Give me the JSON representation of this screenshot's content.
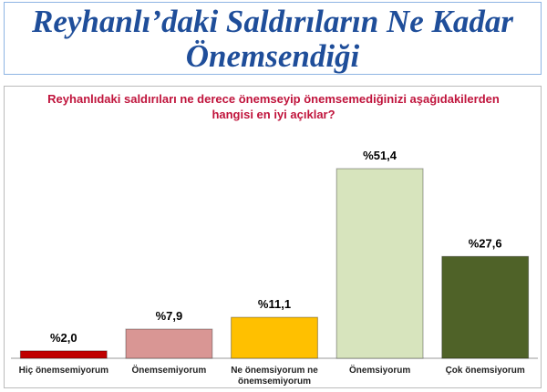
{
  "chart_data": {
    "type": "bar",
    "title": "Reyhanlı’daki Saldırıların Ne Kadar Önemsendiği",
    "subtitle": "Reyhanlıdaki saldırıları ne derece önemseyip önemsemediğinizi aşağıdakilerden hangisi en iyi açıklar?",
    "categories": [
      "Hiç önemsemiyorum",
      "Önemsemiyorum",
      "Ne önemsiyorum ne önemsemiyorum",
      "Önemsiyorum",
      "Çok önemsiyorum"
    ],
    "values": [
      2.0,
      7.9,
      11.1,
      51.4,
      27.6
    ],
    "value_labels": [
      "%2,0",
      "%7,9",
      "%11,1",
      "%51,4",
      "%27,6"
    ],
    "colors": [
      "#c00000",
      "#d99694",
      "#ffc000",
      "#d7e4bd",
      "#4f6228"
    ]
  }
}
